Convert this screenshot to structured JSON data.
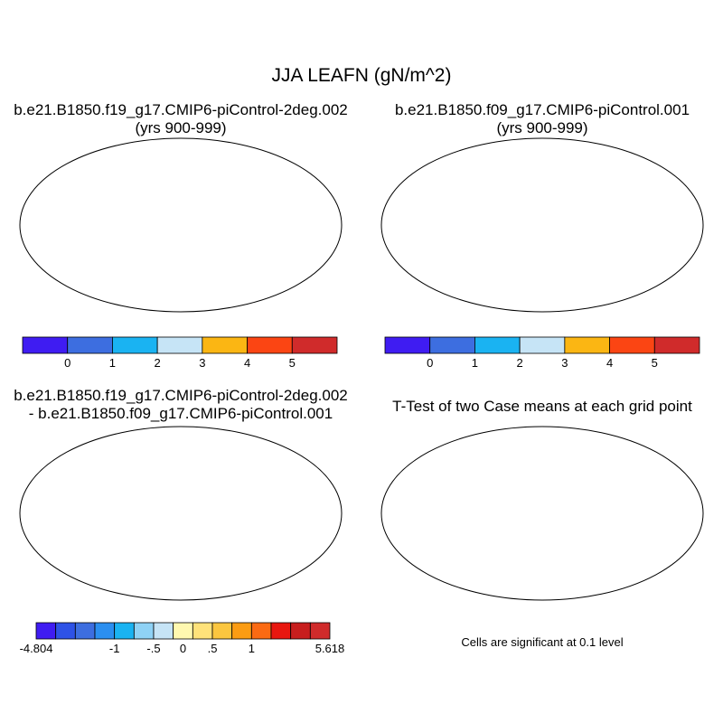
{
  "title": "JJA LEAFN (gN/m^2)",
  "panels": [
    {
      "id": "case1",
      "title_line1": "b.e21.B1850.f19_g17.CMIP6-piControl-2deg.002",
      "title_line2": "(yrs 900-999)"
    },
    {
      "id": "case2",
      "title_line1": "b.e21.B1850.f09_g17.CMIP6-piControl.001",
      "title_line2": "(yrs 900-999)"
    },
    {
      "id": "diff",
      "title_line1": "b.e21.B1850.f19_g17.CMIP6-piControl-2deg.002",
      "title_line2": "- b.e21.B1850.f09_g17.CMIP6-piControl.001"
    },
    {
      "id": "ttest",
      "title_line1": "T-Test of two Case means at each grid point",
      "title_line2": ""
    }
  ],
  "colorbar_main": {
    "colors": [
      "#3f1cf2",
      "#3d6ee0",
      "#1ab3f2",
      "#c6e4f6",
      "#fbb613",
      "#fb4513",
      "#d02b2b"
    ],
    "labels": [
      "0",
      "1",
      "2",
      "3",
      "4",
      "5"
    ]
  },
  "colorbar_diff": {
    "colors": [
      "#3f1cf2",
      "#2e52e6",
      "#3d6ee0",
      "#2b8ff0",
      "#1ab3f2",
      "#8fd2f5",
      "#c6e4f6",
      "#fff8b0",
      "#ffe27a",
      "#fbc63f",
      "#fb9c13",
      "#fb6a13",
      "#e8170f",
      "#c81e1e",
      "#d02b2b"
    ],
    "labels": [
      "-4.804",
      "-1",
      "-.5",
      "0",
      ".5",
      "1",
      "5.618"
    ]
  },
  "note": "Cells are significant at 0.1 level"
}
